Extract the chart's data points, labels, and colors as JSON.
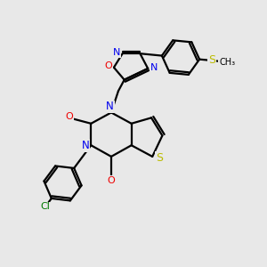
{
  "background_color": "#e8e8e8",
  "bond_color": "#000000",
  "n_color": "#0000ee",
  "o_color": "#ee0000",
  "s_color": "#bbbb00",
  "cl_color": "#007700",
  "line_width": 1.6,
  "fig_size": [
    3.0,
    3.0
  ],
  "dpi": 100,
  "xlim": [
    0,
    10
  ],
  "ylim": [
    0,
    10
  ]
}
